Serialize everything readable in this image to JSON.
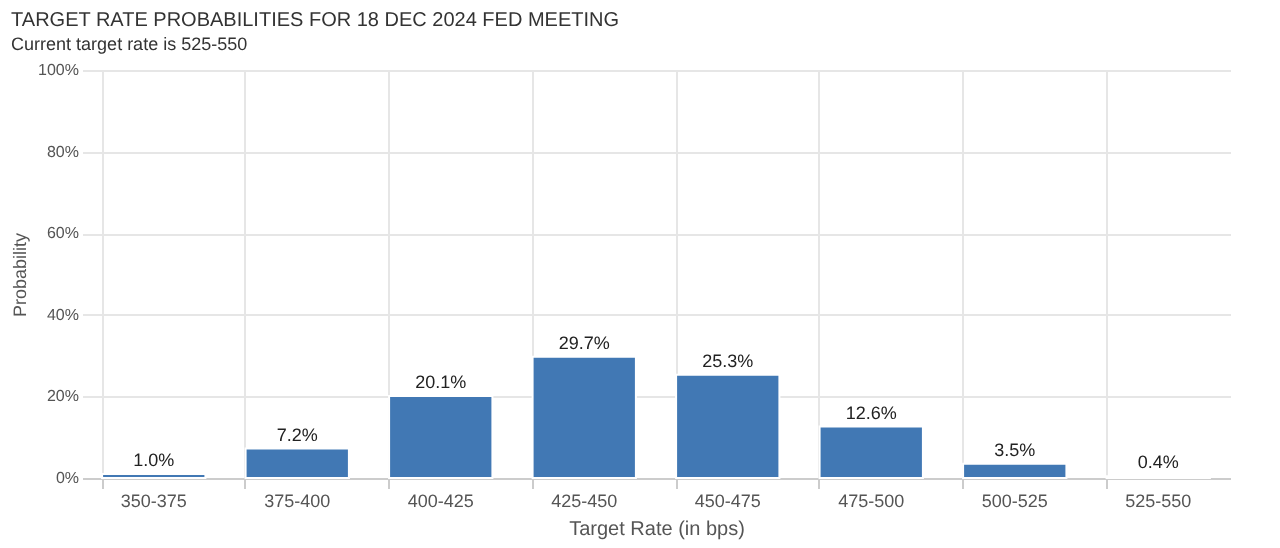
{
  "chart_data": {
    "type": "bar",
    "title": "TARGET RATE PROBABILITIES FOR 18 DEC 2024 FED MEETING",
    "subtitle": "Current target rate is 525-550",
    "xlabel": "Target Rate (in bps)",
    "ylabel": "Probability",
    "categories": [
      "350-375",
      "375-400",
      "400-425",
      "425-450",
      "450-475",
      "475-500",
      "500-525",
      "525-550"
    ],
    "values": [
      1.0,
      7.2,
      20.1,
      29.7,
      25.3,
      12.6,
      3.5,
      0.4
    ],
    "value_labels": [
      "1.0%",
      "7.2%",
      "20.1%",
      "29.7%",
      "25.3%",
      "12.6%",
      "3.5%",
      "0.4%"
    ],
    "color": "#4178b4",
    "ylim": [
      0,
      100
    ],
    "yticks": [
      {
        "value": 0,
        "label": "0%"
      },
      {
        "value": 20,
        "label": "20%"
      },
      {
        "value": 40,
        "label": "40%"
      },
      {
        "value": 60,
        "label": "60%"
      },
      {
        "value": 80,
        "label": "80%"
      },
      {
        "value": 100,
        "label": "100%"
      }
    ],
    "grid": true
  }
}
